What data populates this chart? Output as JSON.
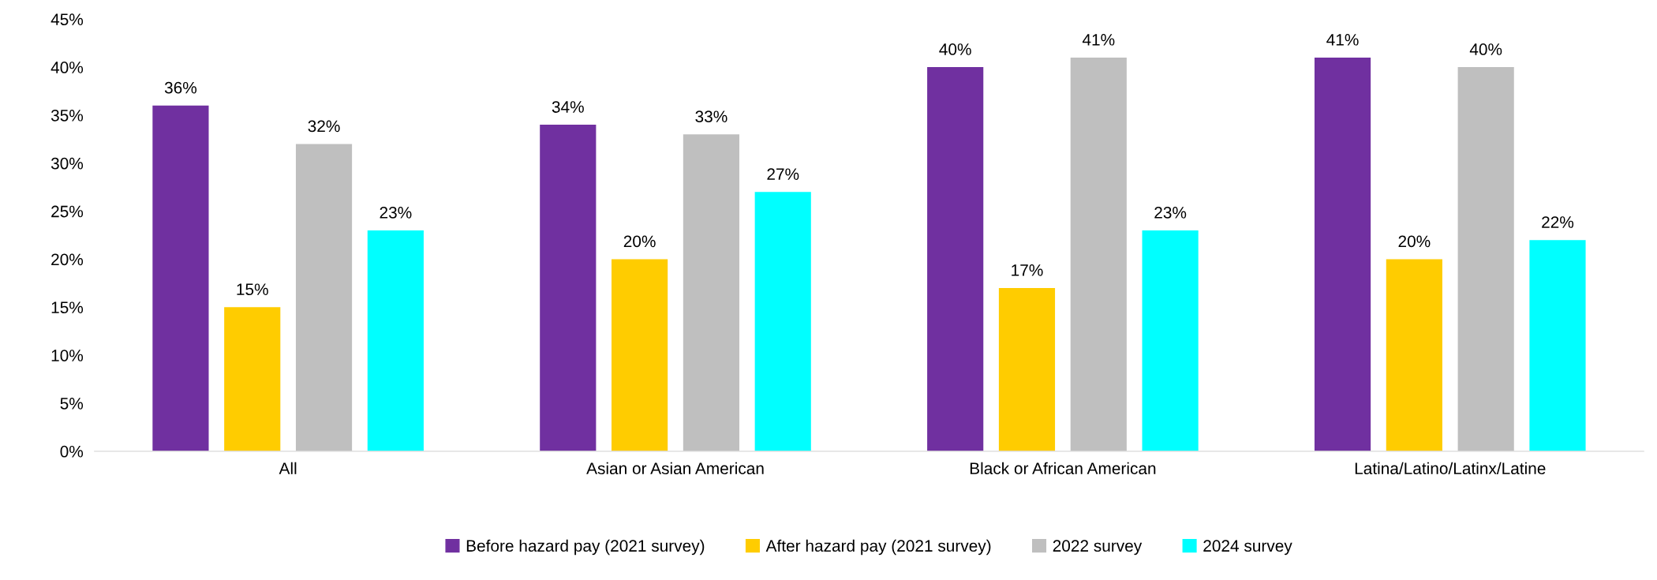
{
  "chart_data": {
    "type": "bar",
    "categories": [
      "All",
      "Asian or Asian American",
      "Black or African American",
      "Latina/Latino/Latinx/Latine"
    ],
    "series": [
      {
        "name": "Before hazard pay (2021 survey)",
        "color": "#7030a0",
        "values": [
          36,
          34,
          40,
          41
        ],
        "value_labels": [
          "36%",
          "34%",
          "40%",
          "41%"
        ]
      },
      {
        "name": "After hazard pay (2021 survey)",
        "color": "#ffcc00",
        "values": [
          15,
          20,
          17,
          20
        ],
        "value_labels": [
          "15%",
          "20%",
          "17%",
          "20%"
        ]
      },
      {
        "name": "2022 survey",
        "color": "#bfbfbf",
        "values": [
          32,
          33,
          41,
          40
        ],
        "value_labels": [
          "32%",
          "33%",
          "41%",
          "40%"
        ]
      },
      {
        "name": "2024 survey",
        "color": "#00ffff",
        "values": [
          23,
          27,
          23,
          22
        ],
        "value_labels": [
          "23%",
          "27%",
          "23%",
          "22%"
        ]
      }
    ],
    "ylim": [
      0,
      45
    ],
    "yticks": [
      {
        "value": 0,
        "label": "0%"
      },
      {
        "value": 5,
        "label": "5%"
      },
      {
        "value": 10,
        "label": "10%"
      },
      {
        "value": 15,
        "label": "15%"
      },
      {
        "value": 20,
        "label": "20%"
      },
      {
        "value": 25,
        "label": "25%"
      },
      {
        "value": 30,
        "label": "30%"
      },
      {
        "value": 35,
        "label": "35%"
      },
      {
        "value": 40,
        "label": "40%"
      },
      {
        "value": 45,
        "label": "45%"
      }
    ],
    "grid": false,
    "legend": "bottom"
  }
}
